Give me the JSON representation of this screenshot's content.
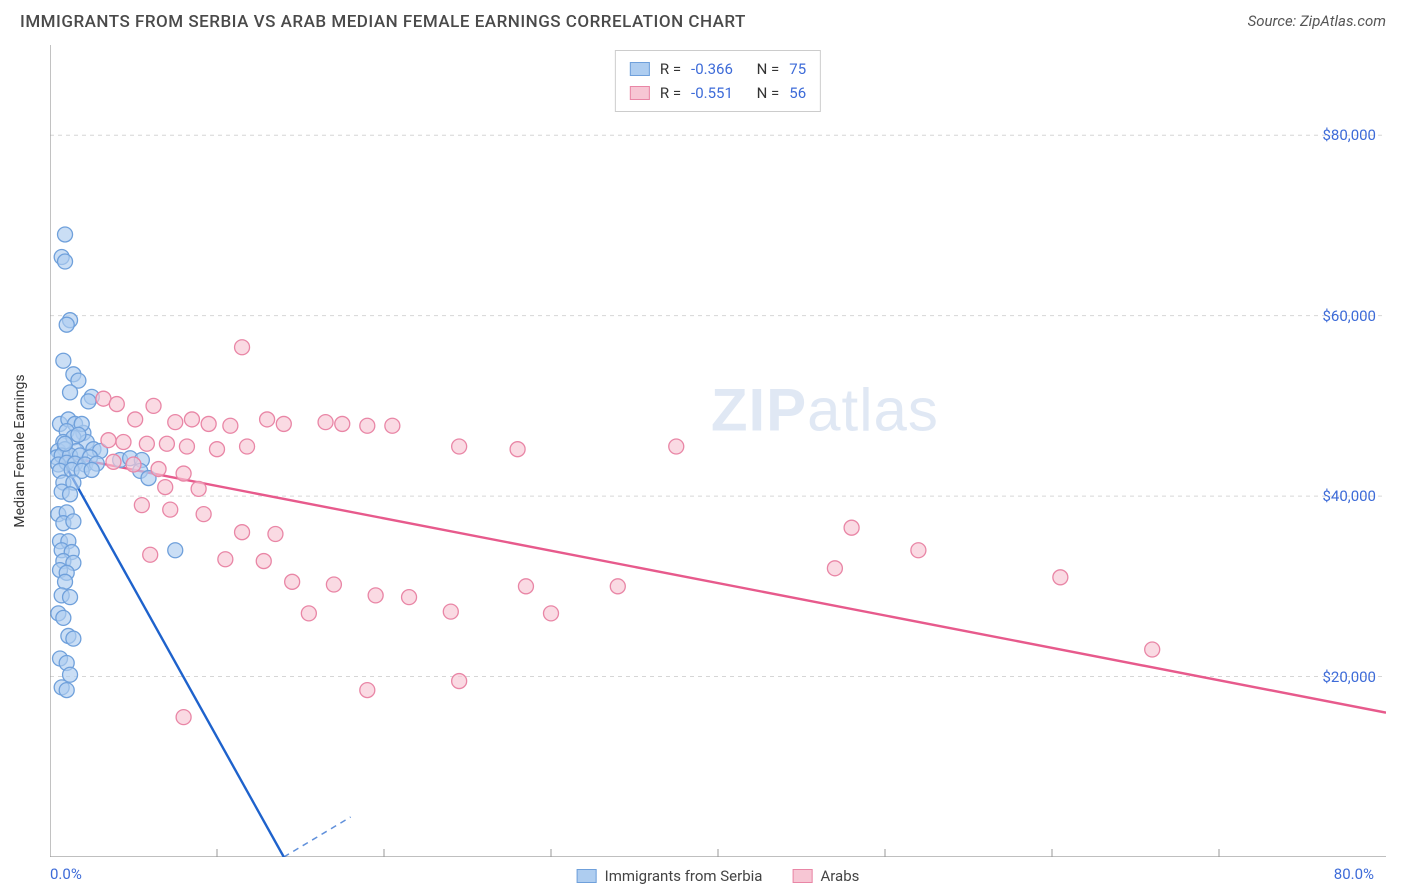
{
  "header": {
    "title": "IMMIGRANTS FROM SERBIA VS ARAB MEDIAN FEMALE EARNINGS CORRELATION CHART",
    "source_prefix": "Source: ",
    "source_name": "ZipAtlas.com"
  },
  "chart": {
    "type": "scatter",
    "ylabel": "Median Female Earnings",
    "watermark_bold": "ZIP",
    "watermark_rest": "atlas",
    "xlim": [
      0,
      80
    ],
    "ylim": [
      0,
      90000
    ],
    "x_min_label": "0.0%",
    "x_max_label": "80.0%",
    "y_ticks": [
      20000,
      40000,
      60000,
      80000
    ],
    "y_tick_labels": [
      "$20,000",
      "$40,000",
      "$60,000",
      "$80,000"
    ],
    "x_minor_ticks": [
      10,
      20,
      30,
      40,
      50,
      60,
      70
    ],
    "background_color": "#ffffff",
    "grid_color": "#d6d6d6",
    "axis_color": "#999999",
    "series": [
      {
        "id": "serbia",
        "label": "Immigrants from Serbia",
        "r_label": "R =",
        "r_value": "-0.366",
        "n_label": "N =",
        "n_value": "75",
        "fill": "#aecdf0",
        "stroke": "#6fa0db",
        "line_color": "#1e62cc",
        "trend": {
          "x1": 0.6,
          "y1": 44500,
          "x2": 14,
          "y2": 0
        },
        "points": [
          [
            0.9,
            69000
          ],
          [
            0.7,
            66500
          ],
          [
            0.9,
            66000
          ],
          [
            1.2,
            59500
          ],
          [
            1.0,
            59000
          ],
          [
            0.8,
            55000
          ],
          [
            1.4,
            53500
          ],
          [
            1.7,
            52800
          ],
          [
            1.2,
            51500
          ],
          [
            2.5,
            51000
          ],
          [
            2.3,
            50500
          ],
          [
            0.6,
            48000
          ],
          [
            1.1,
            48500
          ],
          [
            1.5,
            48000
          ],
          [
            1.0,
            47200
          ],
          [
            2.0,
            47000
          ],
          [
            1.9,
            48000
          ],
          [
            0.8,
            46000
          ],
          [
            1.4,
            46500
          ],
          [
            2.2,
            46000
          ],
          [
            0.5,
            45000
          ],
          [
            0.9,
            45200
          ],
          [
            1.6,
            45000
          ],
          [
            2.6,
            45200
          ],
          [
            3.0,
            45000
          ],
          [
            0.4,
            44300
          ],
          [
            0.7,
            44500
          ],
          [
            1.2,
            44500
          ],
          [
            1.8,
            44500
          ],
          [
            2.4,
            44300
          ],
          [
            0.5,
            43500
          ],
          [
            1.0,
            43700
          ],
          [
            1.5,
            43600
          ],
          [
            2.1,
            43500
          ],
          [
            2.8,
            43600
          ],
          [
            0.6,
            42800
          ],
          [
            1.3,
            42900
          ],
          [
            1.9,
            42800
          ],
          [
            2.5,
            42900
          ],
          [
            4.2,
            44000
          ],
          [
            4.8,
            44200
          ],
          [
            5.5,
            44000
          ],
          [
            0.8,
            41500
          ],
          [
            1.4,
            41500
          ],
          [
            0.7,
            40500
          ],
          [
            1.2,
            40200
          ],
          [
            0.5,
            38000
          ],
          [
            1.0,
            38200
          ],
          [
            0.8,
            37000
          ],
          [
            1.4,
            37200
          ],
          [
            5.4,
            42800
          ],
          [
            5.9,
            42000
          ],
          [
            0.6,
            35000
          ],
          [
            1.1,
            35000
          ],
          [
            0.7,
            34000
          ],
          [
            1.3,
            33800
          ],
          [
            7.5,
            34000
          ],
          [
            0.8,
            32800
          ],
          [
            1.4,
            32600
          ],
          [
            0.6,
            31800
          ],
          [
            1.0,
            31500
          ],
          [
            0.9,
            30500
          ],
          [
            0.7,
            29000
          ],
          [
            1.2,
            28800
          ],
          [
            0.5,
            27000
          ],
          [
            0.8,
            26500
          ],
          [
            1.1,
            24500
          ],
          [
            1.4,
            24200
          ],
          [
            0.6,
            22000
          ],
          [
            1.0,
            21500
          ],
          [
            1.2,
            20200
          ],
          [
            0.7,
            18800
          ],
          [
            1.0,
            18500
          ],
          [
            0.9,
            45800
          ],
          [
            1.7,
            46800
          ]
        ]
      },
      {
        "id": "arabs",
        "label": "Arabs",
        "r_label": "R =",
        "r_value": "-0.551",
        "n_label": "N =",
        "n_value": "56",
        "fill": "#f7c6d4",
        "stroke": "#e986a6",
        "line_color": "#e75a8c",
        "trend": {
          "x1": 0.6,
          "y1": 44500,
          "x2": 80,
          "y2": 16000
        },
        "points": [
          [
            11.5,
            56500
          ],
          [
            3.2,
            50800
          ],
          [
            4.0,
            50200
          ],
          [
            6.2,
            50000
          ],
          [
            5.1,
            48500
          ],
          [
            7.5,
            48200
          ],
          [
            8.5,
            48500
          ],
          [
            9.5,
            48000
          ],
          [
            10.8,
            47800
          ],
          [
            13.0,
            48500
          ],
          [
            14.0,
            48000
          ],
          [
            16.5,
            48200
          ],
          [
            17.5,
            48000
          ],
          [
            19.0,
            47800
          ],
          [
            20.5,
            47800
          ],
          [
            3.5,
            46200
          ],
          [
            4.4,
            46000
          ],
          [
            5.8,
            45800
          ],
          [
            7.0,
            45800
          ],
          [
            8.2,
            45500
          ],
          [
            10.0,
            45200
          ],
          [
            11.8,
            45500
          ],
          [
            24.5,
            45500
          ],
          [
            28.0,
            45200
          ],
          [
            37.5,
            45500
          ],
          [
            3.8,
            43800
          ],
          [
            5.0,
            43500
          ],
          [
            6.5,
            43000
          ],
          [
            8.0,
            42500
          ],
          [
            6.9,
            41000
          ],
          [
            8.9,
            40800
          ],
          [
            5.5,
            39000
          ],
          [
            7.2,
            38500
          ],
          [
            9.2,
            38000
          ],
          [
            48.0,
            36500
          ],
          [
            11.5,
            36000
          ],
          [
            13.5,
            35800
          ],
          [
            52.0,
            34000
          ],
          [
            6.0,
            33500
          ],
          [
            10.5,
            33000
          ],
          [
            12.8,
            32800
          ],
          [
            47.0,
            32000
          ],
          [
            14.5,
            30500
          ],
          [
            17.0,
            30200
          ],
          [
            60.5,
            31000
          ],
          [
            19.5,
            29000
          ],
          [
            21.5,
            28800
          ],
          [
            28.5,
            30000
          ],
          [
            34.0,
            30000
          ],
          [
            15.5,
            27000
          ],
          [
            24.0,
            27200
          ],
          [
            30.0,
            27000
          ],
          [
            66.0,
            23000
          ],
          [
            24.5,
            19500
          ],
          [
            8.0,
            15500
          ],
          [
            19.0,
            18500
          ]
        ]
      }
    ]
  }
}
